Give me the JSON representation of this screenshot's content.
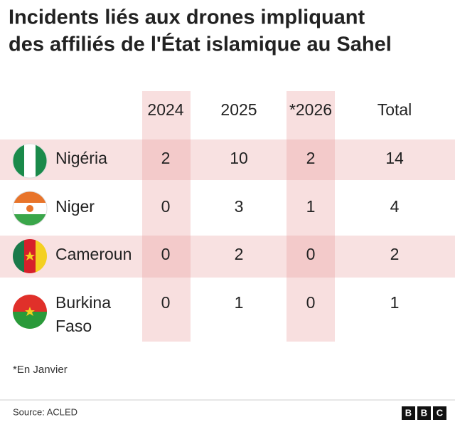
{
  "title": [
    "Incidents liés aux drones impliquant",
    "des affiliés de l'État islamique au Sahel"
  ],
  "table": {
    "columns": [
      "2024",
      "2025",
      "*2026",
      "Total"
    ],
    "rows": [
      {
        "country": [
          "Nigéria"
        ],
        "values": [
          2,
          10,
          2,
          14
        ]
      },
      {
        "country": [
          "Niger"
        ],
        "values": [
          0,
          3,
          1,
          4
        ]
      },
      {
        "country": [
          "Cameroun"
        ],
        "values": [
          0,
          2,
          0,
          2
        ]
      },
      {
        "country": [
          "Burkina",
          "Faso"
        ],
        "values": [
          0,
          1,
          0,
          1
        ]
      }
    ]
  },
  "footnote": "*En Janvier",
  "source": "Source: ACLED",
  "logo": [
    "B",
    "B",
    "C"
  ]
}
